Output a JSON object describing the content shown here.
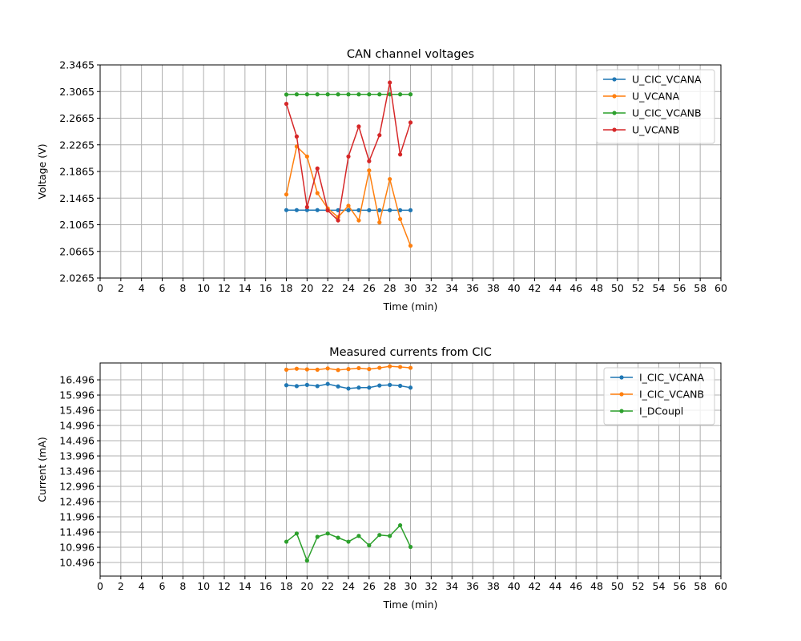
{
  "chart_data": [
    {
      "type": "line",
      "title": "CAN channel voltages",
      "xlabel": "Time (min)",
      "ylabel": "Voltage (V)",
      "xlim": [
        0,
        60
      ],
      "ylim": [
        2.0265,
        2.3465
      ],
      "xticks": [
        0,
        2,
        4,
        6,
        8,
        10,
        12,
        14,
        16,
        18,
        20,
        22,
        24,
        26,
        28,
        30,
        32,
        34,
        36,
        38,
        40,
        42,
        44,
        46,
        48,
        50,
        52,
        54,
        56,
        58,
        60
      ],
      "yticks": [
        2.0265,
        2.0665,
        2.1065,
        2.1465,
        2.1865,
        2.2265,
        2.2665,
        2.3065,
        2.3465
      ],
      "ytick_labels": [
        "2.0265",
        "2.0665",
        "2.1065",
        "2.1465",
        "2.1865",
        "2.2265",
        "2.2665",
        "2.3065",
        "2.3465"
      ],
      "grid": true,
      "legend_position": "top-right",
      "x": [
        18,
        19,
        20,
        21,
        22,
        23,
        24,
        25,
        26,
        27,
        28,
        29,
        30
      ],
      "series": [
        {
          "name": "U_CIC_VCANA",
          "color": "#1f77b4",
          "values": [
            2.1285,
            2.1285,
            2.1285,
            2.1285,
            2.1283,
            2.1283,
            2.1283,
            2.1283,
            2.1283,
            2.1283,
            2.1283,
            2.1283,
            2.1283
          ]
        },
        {
          "name": "U_VCANA",
          "color": "#ff7f0e",
          "values": [
            2.152,
            2.224,
            2.209,
            2.154,
            2.131,
            2.118,
            2.135,
            2.113,
            2.188,
            2.11,
            2.175,
            2.115,
            2.075
          ]
        },
        {
          "name": "U_CIC_VCANB",
          "color": "#2ca02c",
          "values": [
            2.302,
            2.3023,
            2.3023,
            2.3023,
            2.3023,
            2.3023,
            2.3023,
            2.3023,
            2.3023,
            2.3023,
            2.3023,
            2.3023,
            2.3023
          ]
        },
        {
          "name": "U_VCANB",
          "color": "#d62728",
          "values": [
            2.288,
            2.239,
            2.133,
            2.191,
            2.128,
            2.113,
            2.209,
            2.254,
            2.202,
            2.241,
            2.32,
            2.212,
            2.26
          ]
        }
      ]
    },
    {
      "type": "line",
      "title": "Measured currents from CIC",
      "xlabel": "Time (min)",
      "ylabel": "Current (mA)",
      "xlim": [
        0,
        60
      ],
      "ylim": [
        10.05,
        17.05
      ],
      "xticks": [
        0,
        2,
        4,
        6,
        8,
        10,
        12,
        14,
        16,
        18,
        20,
        22,
        24,
        26,
        28,
        30,
        32,
        34,
        36,
        38,
        40,
        42,
        44,
        46,
        48,
        50,
        52,
        54,
        56,
        58,
        60
      ],
      "yticks": [
        10.496,
        10.996,
        11.496,
        11.996,
        12.496,
        12.996,
        13.496,
        13.996,
        14.496,
        14.996,
        15.496,
        15.996,
        16.496
      ],
      "ytick_labels": [
        "10.496",
        "10.996",
        "11.496",
        "11.996",
        "12.496",
        "12.996",
        "13.496",
        "13.996",
        "14.496",
        "14.996",
        "15.496",
        "15.996",
        "16.496"
      ],
      "grid": true,
      "legend_position": "top-right",
      "x": [
        18,
        19,
        20,
        21,
        22,
        23,
        24,
        25,
        26,
        27,
        28,
        29,
        30
      ],
      "series": [
        {
          "name": "I_CIC_VCANA",
          "color": "#1f77b4",
          "values": [
            16.32,
            16.29,
            16.33,
            16.29,
            16.36,
            16.28,
            16.21,
            16.24,
            16.24,
            16.31,
            16.33,
            16.3,
            16.24
          ]
        },
        {
          "name": "I_CIC_VCANB",
          "color": "#ff7f0e",
          "values": [
            16.83,
            16.86,
            16.84,
            16.83,
            16.87,
            16.82,
            16.85,
            16.88,
            16.85,
            16.89,
            16.94,
            16.92,
            16.89
          ]
        },
        {
          "name": "I_DCoupl",
          "color": "#2ca02c",
          "values": [
            11.18,
            11.45,
            10.56,
            11.34,
            11.45,
            11.31,
            11.18,
            11.37,
            11.06,
            11.4,
            11.37,
            11.72,
            11.01
          ]
        }
      ]
    }
  ]
}
